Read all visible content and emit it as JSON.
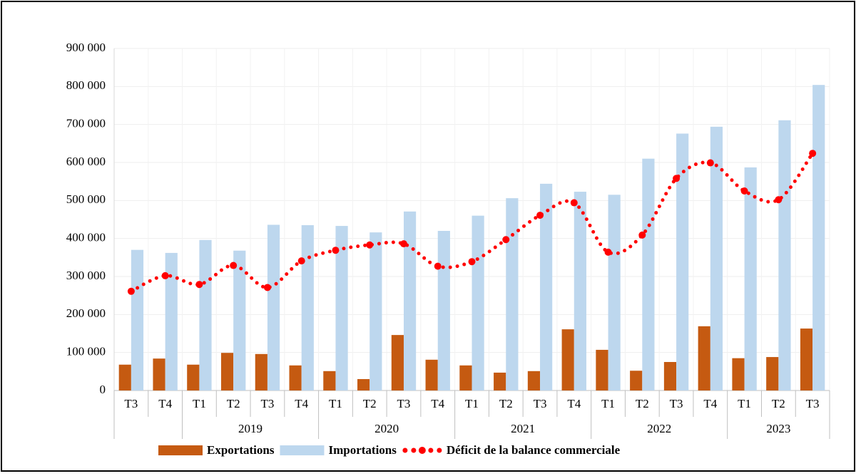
{
  "chart_data": {
    "type": "bar-line",
    "categories": [
      "T3",
      "T4",
      "T1",
      "T2",
      "T3",
      "T4",
      "T1",
      "T2",
      "T3",
      "T4",
      "T1",
      "T2",
      "T3",
      "T4",
      "T1",
      "T2",
      "T3",
      "T4",
      "T1",
      "T2",
      "T3"
    ],
    "category_years": [
      null,
      null,
      "2019",
      "2019",
      "2019",
      "2019",
      "2020",
      "2020",
      "2020",
      "2020",
      "2021",
      "2021",
      "2021",
      "2021",
      "2022",
      "2022",
      "2022",
      "2022",
      "2023",
      "2023",
      "2023"
    ],
    "series": [
      {
        "name": "Exportations",
        "type": "bar",
        "color": "#c55a11",
        "values": [
          68000,
          84000,
          68000,
          99000,
          96000,
          66000,
          51000,
          30000,
          146000,
          81000,
          66000,
          47000,
          51000,
          161000,
          107000,
          52000,
          75000,
          169000,
          85000,
          88000,
          163000
        ]
      },
      {
        "name": "Importations",
        "type": "bar",
        "color": "#bdd7ee",
        "values": [
          370000,
          362000,
          396000,
          368000,
          436000,
          435000,
          433000,
          416000,
          471000,
          420000,
          460000,
          506000,
          544000,
          523000,
          515000,
          610000,
          676000,
          694000,
          587000,
          711000,
          804000
        ]
      },
      {
        "name": "Déficit de la balance commerciale",
        "type": "line",
        "color": "#ff0000",
        "values": [
          261000,
          302000,
          279000,
          329000,
          271000,
          341000,
          369000,
          383000,
          386000,
          327000,
          339000,
          397000,
          461000,
          494000,
          364000,
          409000,
          558000,
          599000,
          525000,
          502000,
          624000
        ]
      }
    ],
    "ylim": [
      0,
      900000
    ],
    "yticks": [
      0,
      {
        "value": 100000,
        "label": "100 000"
      },
      {
        "value": 200000,
        "label": "200 000"
      },
      {
        "value": 300000,
        "label": "300 000"
      },
      {
        "value": 400000,
        "label": "400 000"
      },
      {
        "value": 500000,
        "label": "500 000"
      },
      {
        "value": 600000,
        "label": "600 000"
      },
      {
        "value": 700000,
        "label": "700 000"
      },
      {
        "value": 800000,
        "label": "800 000"
      },
      {
        "value": 900000,
        "label": "900 000"
      }
    ],
    "grid": true,
    "legend": "bottom"
  }
}
